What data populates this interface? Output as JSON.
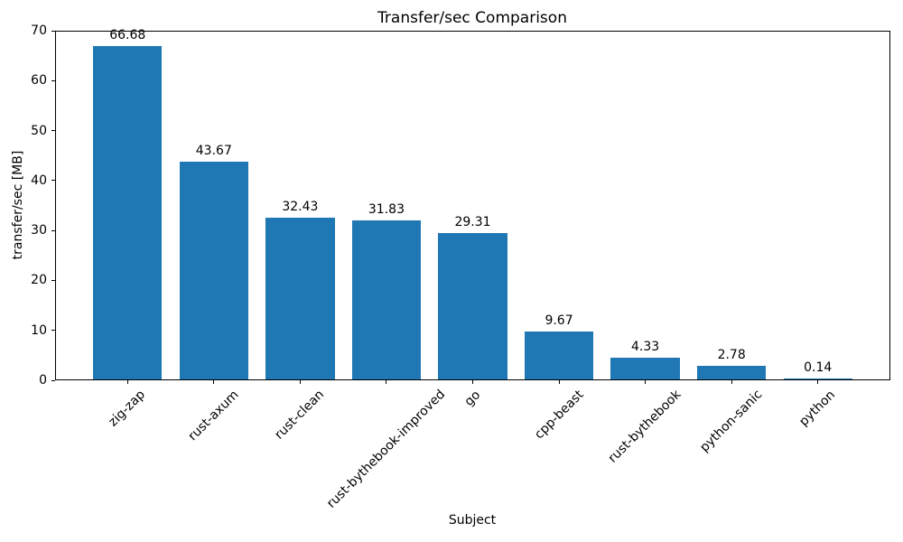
{
  "chart_data": {
    "type": "bar",
    "title": "Transfer/sec Comparison",
    "xlabel": "Subject",
    "ylabel": "transfer/sec [MB]",
    "categories": [
      "zig-zap",
      "rust-axum",
      "rust-clean",
      "rust-bythebook-improved",
      "go",
      "cpp-beast",
      "rust-bythebook",
      "python-sanic",
      "python"
    ],
    "values": [
      66.68,
      43.67,
      32.43,
      31.83,
      29.31,
      9.67,
      4.33,
      2.78,
      0.14
    ],
    "bar_labels": [
      "66.68",
      "43.67",
      "32.43",
      "31.83",
      "29.31",
      "9.67",
      "4.33",
      "2.78",
      "0.14"
    ],
    "ylim": [
      0,
      70
    ],
    "yticks": [
      0,
      10,
      20,
      30,
      40,
      50,
      60,
      70
    ],
    "x_tick_rotation_deg": 45,
    "bar_color": "#1f77b4",
    "axis_color": "#000000",
    "text_color": "#000000",
    "background_color": "#ffffff",
    "grid": false,
    "legend": "none"
  }
}
